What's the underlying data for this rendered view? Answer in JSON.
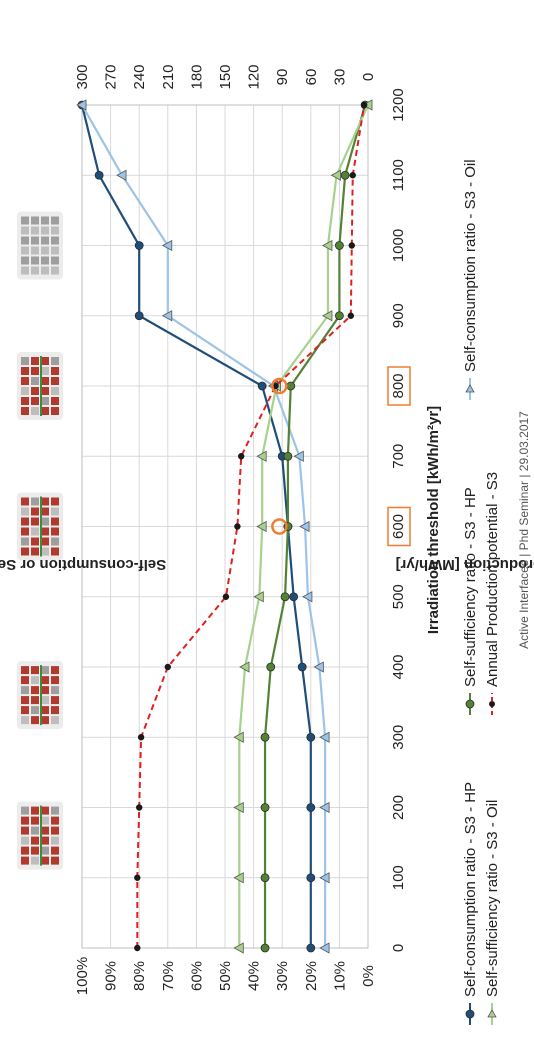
{
  "chart_data": {
    "type": "line",
    "x_axis_label": "Irradiation threshold [kWh/m²yr]",
    "left_axis_label": "Self-consumption or Self-sufficiency [%]",
    "right_axis_label": "Annual BIPV production [MWh/yr]",
    "x": [
      0,
      100,
      200,
      300,
      400,
      500,
      600,
      700,
      800,
      900,
      1000,
      1100,
      1200
    ],
    "xlim": [
      0,
      1200
    ],
    "left_ylim": [
      0,
      100
    ],
    "right_ylim": [
      0,
      300
    ],
    "x_ticks": [
      "0",
      "100",
      "200",
      "300",
      "400",
      "500",
      "600",
      "700",
      "800",
      "900",
      "1000",
      "1100",
      "1200"
    ],
    "left_ticks": [
      "0%",
      "10%",
      "20%",
      "30%",
      "40%",
      "50%",
      "60%",
      "70%",
      "80%",
      "90%",
      "100%"
    ],
    "right_ticks": [
      "0",
      "30",
      "60",
      "90",
      "120",
      "150",
      "180",
      "210",
      "240",
      "270",
      "300"
    ],
    "highlighted_ticks": [
      "600",
      "800"
    ],
    "series": [
      {
        "name": "Self-consumption ratio - S3 -   HP",
        "axis": "left",
        "color": "#1f4e79",
        "marker": "circle",
        "dash": "solid",
        "values": [
          20,
          20,
          20,
          20,
          23,
          26,
          28,
          30,
          37,
          80,
          80,
          94,
          100
        ]
      },
      {
        "name": "Self-consumption ratio - S3 - Oil",
        "axis": "left",
        "color": "#9dc3e6",
        "marker": "triangle",
        "dash": "solid",
        "values": [
          15,
          15,
          15,
          15,
          17,
          21,
          22,
          24,
          33,
          70,
          70,
          86,
          100
        ]
      },
      {
        "name": "Self-sufficiency ratio - S3 -   HP",
        "axis": "left",
        "color": "#548235",
        "marker": "circle",
        "dash": "solid",
        "values": [
          36,
          36,
          36,
          36,
          34,
          29,
          28,
          28,
          27,
          10,
          10,
          8,
          1
        ]
      },
      {
        "name": "Self-sufficiency ratio - S3 - Oil",
        "axis": "left",
        "color": "#a9d18e",
        "marker": "triangle",
        "dash": "solid",
        "values": [
          45,
          45,
          45,
          45,
          43,
          38,
          37,
          37,
          32,
          14,
          14,
          11,
          0
        ]
      },
      {
        "name": "Annual Production potential - S3",
        "axis": "right",
        "color": "#e02020",
        "marker": "dot",
        "dash": "dashed",
        "values": [
          242,
          242,
          240,
          238,
          210,
          149,
          137,
          133,
          97,
          18,
          17,
          16,
          4
        ]
      }
    ],
    "highlight_points": [
      {
        "x": 600,
        "y": 31
      },
      {
        "x": 800,
        "y": 31
      }
    ],
    "thumbnails_at": [
      160,
      360,
      600,
      800,
      1000
    ]
  },
  "footer": "Active Interfaces | Phd Seminar | 29.03.2017",
  "colors": {
    "grid": "#d9d9d9",
    "highlight": "#ed7d31"
  }
}
